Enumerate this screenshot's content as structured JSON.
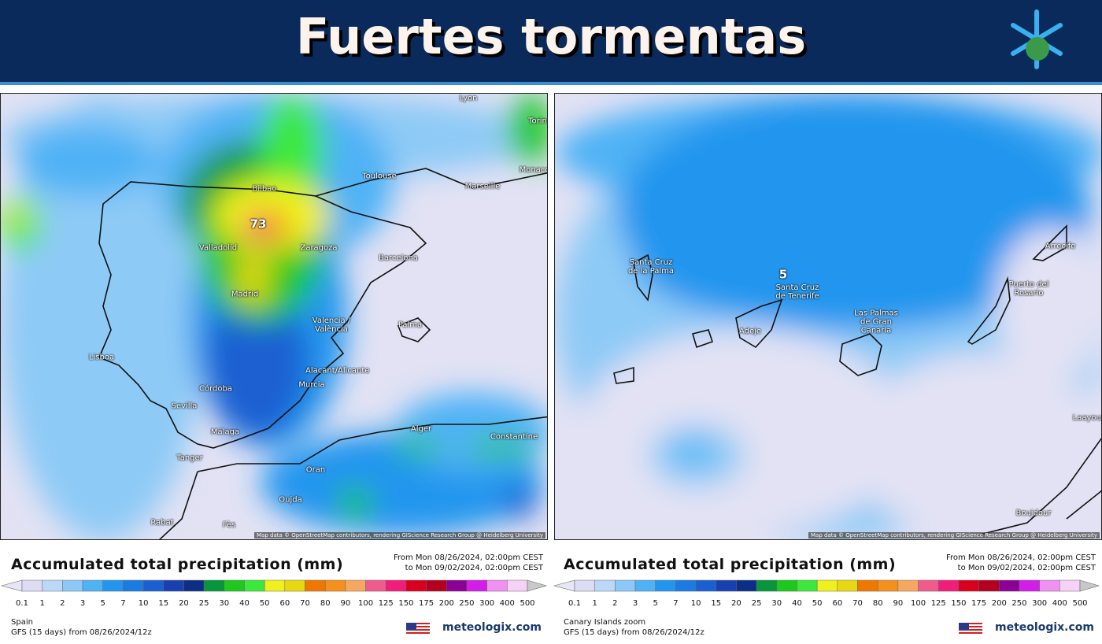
{
  "header": {
    "title": "Fuertes tormentas"
  },
  "legend": {
    "ticks": [
      0.1,
      1,
      2,
      3,
      5,
      7,
      10,
      15,
      20,
      25,
      30,
      40,
      50,
      60,
      70,
      80,
      90,
      100,
      125,
      150,
      175,
      200,
      250,
      300,
      400,
      500
    ],
    "colors": [
      "#e6e6f6",
      "#dcdcf4",
      "#bcd8f8",
      "#8cc8f8",
      "#4fb2f5",
      "#2296ee",
      "#1a7ce2",
      "#1a60d2",
      "#1840b0",
      "#0c2e86",
      "#08963c",
      "#1ec81e",
      "#3ce83c",
      "#f0f01e",
      "#e8d810",
      "#f07800",
      "#f5901c",
      "#f7a860",
      "#f05a8c",
      "#f01e78",
      "#d8001e",
      "#b4001e",
      "#8c0096",
      "#d21ee8",
      "#f090f0",
      "#f6d2f6",
      "#c8c8c8"
    ]
  },
  "panels": [
    {
      "labels": [
        "Lyon",
        "Torino",
        "Monaco",
        "Toulouse",
        "Marseille",
        "Bilbao",
        "73",
        "Valladolid",
        "Zaragoza",
        "Barcelona",
        "Madrid",
        "Valencia / València",
        "Palma",
        "Lisboa",
        "Alacant/Alicante",
        "Murcia",
        "Córdoba",
        "Sevilla",
        "Málaga",
        "Alger",
        "Constantine",
        "Tanger",
        "Oran",
        "Oujda",
        "Rabat",
        "Fès"
      ],
      "attribution": "Map data © OpenStreetMap contributors, rendering GIScience Research Group @ Heidelberg University",
      "legend_title": "Accumulated total precipitation (mm)",
      "period": [
        "From Mon 08/26/2024, 02:00pm CEST",
        "to Mon 09/02/2024, 02:00pm CEST"
      ],
      "region": "Spain",
      "model": "GFS (15 days) from 08/26/2024/12z",
      "brand": "meteologix.com"
    },
    {
      "labels": [
        "Santa Cruz de la Palma",
        "5",
        "Santa Cruz de Tenerife",
        "Adeje",
        "Las Palmas de Gran Canaria",
        "Puerto del Rosario",
        "Arrecife",
        "Boujdour",
        "Laayoune"
      ],
      "attribution": "Map data © OpenStreetMap contributors, rendering GIScience Research Group @ Heidelberg University",
      "legend_title": "Accumulated total precipitation (mm)",
      "period": [
        "From Mon 08/26/2024, 02:00pm CEST",
        "to Mon 09/02/2024, 02:00pm CEST"
      ],
      "region": "Canary Islands zoom",
      "model": "GFS (15 days) from 08/26/2024/12z",
      "brand": "meteologix.com"
    }
  ]
}
